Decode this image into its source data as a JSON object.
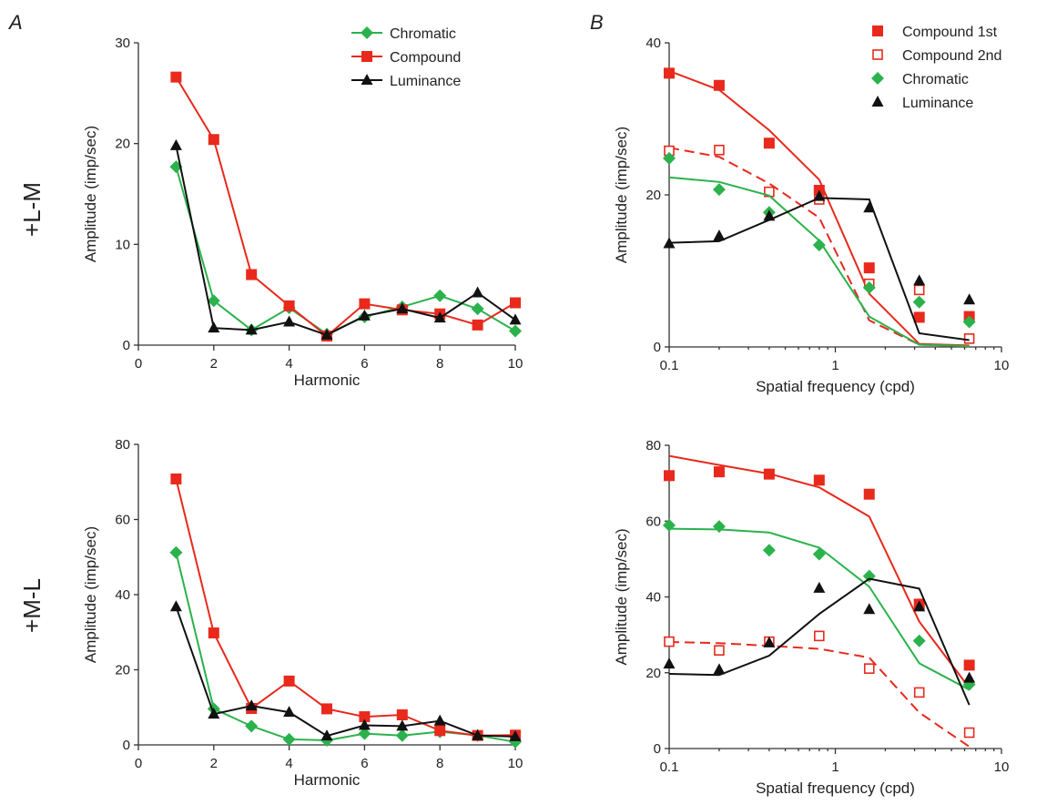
{
  "figure": {
    "panel_labels": [
      "A",
      "B"
    ],
    "row_labels": [
      "+L-M",
      "+M-L"
    ]
  },
  "colors": {
    "chromatic": "#2bb24c",
    "compound": "#e8291c",
    "luminance": "#111111"
  },
  "chart_data": [
    {
      "id": "A1",
      "type": "line",
      "title": "",
      "xlabel": "Harmonic",
      "ylabel": "Amplitude (imp/sec)",
      "xlim": [
        0,
        10
      ],
      "ylim": [
        0,
        30
      ],
      "xticks": [
        0,
        2,
        4,
        6,
        8,
        10
      ],
      "yticks": [
        0,
        10,
        20,
        30
      ],
      "grid": false,
      "legend": "top-right",
      "x": [
        1,
        2,
        3,
        4,
        5,
        6,
        7,
        8,
        9,
        10
      ],
      "series": [
        {
          "name": "Chromatic",
          "key": "chromatic",
          "marker": "diamond",
          "values": [
            17.7,
            4.4,
            1.5,
            3.7,
            1.1,
            2.8,
            3.8,
            4.9,
            3.6,
            1.4
          ]
        },
        {
          "name": "Compound",
          "key": "compound",
          "marker": "square",
          "values": [
            26.6,
            20.4,
            7.0,
            3.9,
            0.9,
            4.1,
            3.5,
            3.1,
            2.0,
            4.2
          ]
        },
        {
          "name": "Luminance",
          "key": "luminance",
          "marker": "triangle",
          "values": [
            19.8,
            1.7,
            1.5,
            2.3,
            1.0,
            2.9,
            3.6,
            2.7,
            5.2,
            2.5
          ]
        }
      ]
    },
    {
      "id": "B1",
      "type": "scatter",
      "title": "",
      "xlabel": "Spatial  frequency (cpd)",
      "ylabel": "Amplitude (imp/sec)",
      "xscale": "log",
      "xlim": [
        0.1,
        10
      ],
      "ylim": [
        0,
        40
      ],
      "xticks": [
        0.1,
        1,
        10
      ],
      "xtick_labels": [
        "0.1",
        "1",
        "10"
      ],
      "yticks": [
        0,
        20,
        40
      ],
      "grid": false,
      "legend": "top-right",
      "series": [
        {
          "name": "Compound 1st",
          "key": "compound",
          "marker": "square",
          "points": [
            [
              0.1,
              36.0
            ],
            [
              0.2,
              34.4
            ],
            [
              0.4,
              26.8
            ],
            [
              0.8,
              20.6
            ],
            [
              1.6,
              10.4
            ],
            [
              3.2,
              3.9
            ],
            [
              6.4,
              4.0
            ]
          ],
          "fit": [
            [
              0.1,
              36.3
            ],
            [
              0.2,
              33.8
            ],
            [
              0.4,
              28.5
            ],
            [
              0.8,
              22.0
            ],
            [
              1.6,
              7.0
            ],
            [
              3.2,
              0.4
            ],
            [
              6.4,
              0.2
            ]
          ],
          "fit_style": "solid"
        },
        {
          "name": "Compound 2nd",
          "key": "compound",
          "marker": "square-open",
          "points": [
            [
              0.1,
              25.8
            ],
            [
              0.2,
              25.9
            ],
            [
              0.4,
              20.4
            ],
            [
              0.8,
              19.4
            ],
            [
              1.6,
              8.3
            ],
            [
              3.2,
              7.5
            ],
            [
              6.4,
              1.1
            ]
          ],
          "fit": [
            [
              0.1,
              26.2
            ],
            [
              0.2,
              25.0
            ],
            [
              0.4,
              21.5
            ],
            [
              0.8,
              17.0
            ],
            [
              1.6,
              3.5
            ],
            [
              3.2,
              0.3
            ],
            [
              6.4,
              0.1
            ]
          ],
          "fit_style": "dashed"
        },
        {
          "name": "Chromatic",
          "key": "chromatic",
          "marker": "diamond",
          "points": [
            [
              0.1,
              24.8
            ],
            [
              0.2,
              20.7
            ],
            [
              0.4,
              17.7
            ],
            [
              0.8,
              13.4
            ],
            [
              1.6,
              7.8
            ],
            [
              3.2,
              5.9
            ],
            [
              6.4,
              3.3
            ]
          ],
          "fit": [
            [
              0.1,
              22.3
            ],
            [
              0.2,
              21.7
            ],
            [
              0.4,
              19.9
            ],
            [
              0.8,
              14.0
            ],
            [
              1.6,
              4.0
            ],
            [
              3.2,
              0.3
            ],
            [
              6.4,
              0.1
            ]
          ],
          "fit_style": "solid"
        },
        {
          "name": "Luminance",
          "key": "luminance",
          "marker": "triangle",
          "points": [
            [
              0.1,
              13.6
            ],
            [
              0.2,
              14.6
            ],
            [
              0.4,
              17.2
            ],
            [
              0.8,
              19.8
            ],
            [
              1.6,
              18.3
            ],
            [
              3.2,
              8.7
            ],
            [
              6.4,
              6.2
            ]
          ],
          "fit": [
            [
              0.1,
              13.7
            ],
            [
              0.2,
              13.9
            ],
            [
              0.4,
              16.7
            ],
            [
              0.8,
              19.6
            ],
            [
              1.6,
              19.4
            ],
            [
              3.2,
              1.8
            ],
            [
              6.4,
              0.9
            ]
          ],
          "fit_style": "solid"
        }
      ]
    },
    {
      "id": "A2",
      "type": "line",
      "title": "",
      "xlabel": "Harmonic",
      "ylabel": "Amplitude (imp/sec)",
      "xlim": [
        0,
        10
      ],
      "ylim": [
        0,
        80
      ],
      "xticks": [
        0,
        2,
        4,
        6,
        8,
        10
      ],
      "yticks": [
        0,
        20,
        40,
        60,
        80
      ],
      "grid": false,
      "legend": "none",
      "x": [
        1,
        2,
        3,
        4,
        5,
        6,
        7,
        8,
        9,
        10
      ],
      "series": [
        {
          "key": "chromatic",
          "marker": "diamond",
          "values": [
            51.2,
            9.6,
            5.0,
            1.5,
            1.2,
            3.0,
            2.5,
            3.5,
            2.5,
            0.8
          ]
        },
        {
          "key": "compound",
          "marker": "square",
          "values": [
            70.8,
            29.8,
            9.7,
            17.0,
            9.6,
            7.5,
            8.0,
            3.8,
            2.5,
            2.6
          ]
        },
        {
          "key": "luminance",
          "marker": "triangle",
          "values": [
            36.8,
            8.2,
            10.4,
            8.7,
            2.4,
            5.2,
            5.0,
            6.4,
            2.5,
            2.2
          ]
        }
      ]
    },
    {
      "id": "B2",
      "type": "scatter",
      "title": "",
      "xlabel": "Spatial  frequency (cpd)",
      "ylabel": "Amplitude (imp/sec)",
      "xscale": "log",
      "xlim": [
        0.1,
        10
      ],
      "ylim": [
        0,
        80
      ],
      "xticks": [
        0.1,
        1,
        10
      ],
      "xtick_labels": [
        "0.1",
        "1",
        "10"
      ],
      "yticks": [
        0,
        20,
        40,
        60,
        80
      ],
      "grid": false,
      "legend": "none",
      "series": [
        {
          "key": "compound",
          "marker": "square",
          "points": [
            [
              0.1,
              72.0
            ],
            [
              0.2,
              73.0
            ],
            [
              0.4,
              72.4
            ],
            [
              0.8,
              70.8
            ],
            [
              1.6,
              67.1
            ],
            [
              3.2,
              38.1
            ],
            [
              6.4,
              22.0
            ]
          ],
          "fit": [
            [
              0.1,
              77.2
            ],
            [
              0.2,
              74.8
            ],
            [
              0.4,
              72.5
            ],
            [
              0.8,
              68.9
            ],
            [
              1.6,
              61.2
            ],
            [
              3.2,
              33.5
            ],
            [
              6.4,
              16.0
            ]
          ],
          "fit_style": "solid"
        },
        {
          "key": "compound",
          "marker": "square-open",
          "points": [
            [
              0.1,
              28.2
            ],
            [
              0.2,
              25.9
            ],
            [
              0.4,
              28.2
            ],
            [
              0.8,
              29.7
            ],
            [
              1.6,
              21.1
            ],
            [
              3.2,
              14.8
            ],
            [
              6.4,
              4.2
            ]
          ],
          "fit": [
            [
              0.1,
              28.1
            ],
            [
              0.2,
              27.8
            ],
            [
              0.4,
              27.1
            ],
            [
              0.8,
              26.3
            ],
            [
              1.6,
              24.0
            ],
            [
              3.2,
              9.5
            ],
            [
              6.4,
              0.5
            ]
          ],
          "fit_style": "dashed"
        },
        {
          "key": "chromatic",
          "marker": "diamond",
          "points": [
            [
              0.1,
              58.9
            ],
            [
              0.2,
              58.6
            ],
            [
              0.4,
              52.3
            ],
            [
              0.8,
              51.3
            ],
            [
              1.6,
              45.5
            ],
            [
              3.2,
              28.4
            ],
            [
              6.4,
              16.9
            ]
          ],
          "fit": [
            [
              0.1,
              58.0
            ],
            [
              0.2,
              57.8
            ],
            [
              0.4,
              57.0
            ],
            [
              0.8,
              53.0
            ],
            [
              1.6,
              42.7
            ],
            [
              3.2,
              22.5
            ],
            [
              6.4,
              15.5
            ]
          ],
          "fit_style": "solid"
        },
        {
          "key": "luminance",
          "marker": "triangle",
          "points": [
            [
              0.1,
              22.3
            ],
            [
              0.2,
              20.8
            ],
            [
              0.4,
              27.9
            ],
            [
              0.8,
              42.3
            ],
            [
              1.6,
              36.7
            ],
            [
              3.2,
              37.4
            ],
            [
              6.4,
              18.6
            ]
          ],
          "fit": [
            [
              0.1,
              19.7
            ],
            [
              0.2,
              19.4
            ],
            [
              0.4,
              24.5
            ],
            [
              0.8,
              35.5
            ],
            [
              1.6,
              44.8
            ],
            [
              3.2,
              42.2
            ],
            [
              6.4,
              11.5
            ]
          ],
          "fit_style": "solid"
        }
      ]
    }
  ]
}
